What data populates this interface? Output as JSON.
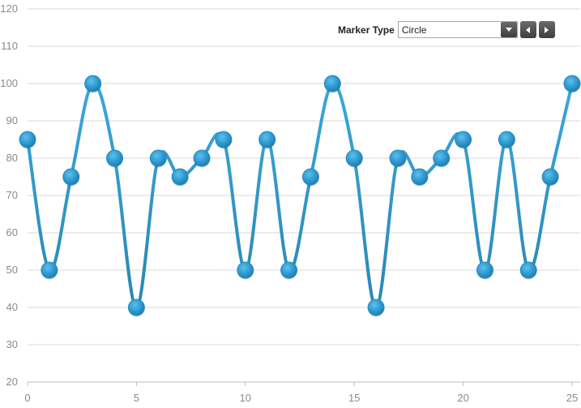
{
  "controls": {
    "marker_type_label": "Marker Type",
    "marker_type_value": "Circle"
  },
  "chart_data": {
    "type": "line",
    "title": "",
    "xlabel": "",
    "ylabel": "",
    "xlim": [
      0,
      25
    ],
    "ylim": [
      20,
      120
    ],
    "x_ticks": [
      0,
      5,
      10,
      15,
      20,
      25
    ],
    "y_ticks": [
      20,
      30,
      40,
      50,
      60,
      70,
      80,
      90,
      100,
      110,
      120
    ],
    "grid": "horizontal",
    "smooth": true,
    "marker": "circle",
    "series": [
      {
        "color": "#2e9bd0",
        "x": [
          0,
          1,
          2,
          3,
          4,
          5,
          6,
          7,
          8,
          9,
          10,
          11,
          12,
          13,
          14,
          15,
          16,
          17,
          18,
          19,
          20,
          21,
          22,
          23,
          24,
          25
        ],
        "values": [
          85,
          50,
          75,
          100,
          80,
          40,
          80,
          75,
          80,
          85,
          50,
          85,
          50,
          75,
          100,
          80,
          40,
          80,
          75,
          80,
          85,
          50,
          85,
          50,
          75,
          100
        ]
      }
    ]
  }
}
